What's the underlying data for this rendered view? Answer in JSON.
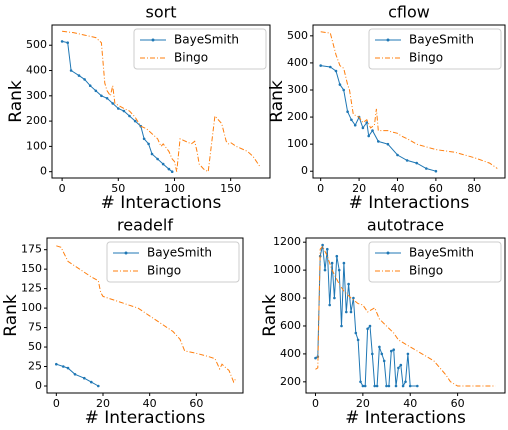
{
  "chart_data": [
    {
      "type": "line",
      "title": "sort",
      "xlabel": "# Interactions",
      "ylabel": "Rank",
      "xlim": [
        -9,
        185
      ],
      "ylim": [
        -25,
        580
      ],
      "xticks": [
        0,
        50,
        100,
        150
      ],
      "yticks": [
        0,
        100,
        200,
        300,
        400,
        500
      ],
      "legend": "upper right",
      "series": [
        {
          "name": "BayeSmith",
          "color": "#1f77b4",
          "x": [
            0,
            5,
            8,
            15,
            20,
            25,
            30,
            35,
            40,
            45,
            50,
            55,
            60,
            65,
            70,
            73,
            77,
            80,
            85,
            90,
            95,
            98
          ],
          "values": [
            515,
            510,
            400,
            380,
            365,
            340,
            320,
            300,
            290,
            270,
            250,
            240,
            220,
            200,
            180,
            130,
            110,
            70,
            50,
            30,
            10,
            0
          ]
        },
        {
          "name": "Bingo",
          "color": "#ff7f0e",
          "x": [
            0,
            10,
            20,
            30,
            35,
            38,
            40,
            43,
            45,
            47,
            55,
            60,
            65,
            70,
            75,
            80,
            85,
            88,
            90,
            95,
            98,
            100,
            102,
            105,
            115,
            118,
            120,
            122,
            126,
            130,
            136,
            142,
            146,
            148,
            150,
            155,
            165,
            170,
            176
          ],
          "values": [
            555,
            550,
            540,
            530,
            510,
            350,
            320,
            300,
            340,
            270,
            250,
            240,
            215,
            180,
            170,
            150,
            130,
            100,
            110,
            80,
            50,
            40,
            0,
            130,
            110,
            120,
            80,
            30,
            10,
            0,
            220,
            190,
            120,
            110,
            115,
            100,
            80,
            60,
            20
          ]
        }
      ]
    },
    {
      "type": "line",
      "title": "cflow",
      "xlabel": "# Interactions",
      "ylabel": "Rank",
      "xlim": [
        -4,
        96
      ],
      "ylim": [
        -25,
        540
      ],
      "xticks": [
        0,
        20,
        40,
        60,
        80
      ],
      "yticks": [
        0,
        100,
        200,
        300,
        400,
        500
      ],
      "legend": "upper right",
      "series": [
        {
          "name": "BayeSmith",
          "color": "#1f77b4",
          "x": [
            0,
            5,
            8,
            10,
            12,
            14,
            16,
            18,
            20,
            22,
            24,
            25,
            27,
            30,
            35,
            40,
            45,
            50,
            55,
            60
          ],
          "values": [
            390,
            385,
            370,
            320,
            300,
            220,
            190,
            170,
            200,
            160,
            180,
            130,
            150,
            110,
            100,
            60,
            40,
            30,
            10,
            0
          ]
        },
        {
          "name": "Bingo",
          "color": "#ff7f0e",
          "x": [
            0,
            5,
            8,
            10,
            12,
            14,
            15,
            17,
            20,
            22,
            24,
            26,
            28,
            29,
            30,
            35,
            37,
            40,
            42,
            45,
            50,
            60,
            70,
            80,
            88,
            92
          ],
          "values": [
            515,
            510,
            430,
            390,
            380,
            320,
            300,
            210,
            200,
            180,
            190,
            160,
            170,
            230,
            150,
            150,
            145,
            140,
            130,
            120,
            100,
            80,
            70,
            50,
            30,
            10
          ]
        }
      ]
    },
    {
      "type": "line",
      "title": "readelf",
      "xlabel": "# Interactions",
      "ylabel": "Rank",
      "xlim": [
        -4,
        80
      ],
      "ylim": [
        -9,
        190
      ],
      "xticks": [
        0,
        20,
        40,
        60
      ],
      "yticks": [
        0,
        25,
        50,
        75,
        100,
        125,
        150,
        175
      ],
      "legend": "upper right",
      "series": [
        {
          "name": "BayeSmith",
          "color": "#1f77b4",
          "x": [
            0,
            3,
            5,
            8,
            12,
            15,
            18
          ],
          "values": [
            28,
            25,
            23,
            15,
            10,
            5,
            0
          ]
        },
        {
          "name": "Bingo",
          "color": "#ff7f0e",
          "x": [
            0,
            2,
            5,
            10,
            15,
            18,
            19,
            20,
            22,
            25,
            30,
            35,
            40,
            45,
            50,
            53,
            55,
            60,
            65,
            68,
            70,
            71,
            72,
            74,
            76,
            77
          ],
          "values": [
            180,
            178,
            160,
            150,
            140,
            135,
            120,
            115,
            113,
            110,
            105,
            100,
            90,
            80,
            70,
            60,
            45,
            42,
            38,
            35,
            22,
            28,
            25,
            20,
            5,
            10
          ]
        }
      ]
    },
    {
      "type": "line",
      "title": "autotrace",
      "xlabel": "# Interactions",
      "ylabel": "Rank",
      "xlim": [
        -4,
        80
      ],
      "ylim": [
        120,
        1230
      ],
      "xticks": [
        0,
        20,
        40,
        60
      ],
      "yticks": [
        200,
        400,
        600,
        800,
        1000,
        1200
      ],
      "legend": "upper right",
      "series": [
        {
          "name": "BayeSmith",
          "color": "#1f77b4",
          "x": [
            0,
            1,
            2,
            3,
            4,
            5,
            6,
            7,
            8,
            9,
            10,
            11,
            12,
            13,
            14,
            15,
            16,
            17,
            18,
            19,
            20,
            21,
            22,
            23,
            24,
            25,
            26,
            27,
            28,
            29,
            30,
            31,
            32,
            33,
            34,
            35,
            36,
            37,
            38,
            39,
            40,
            43
          ],
          "values": [
            370,
            380,
            1100,
            1180,
            1000,
            1150,
            750,
            1050,
            800,
            1100,
            1000,
            600,
            1050,
            700,
            900,
            700,
            800,
            550,
            500,
            200,
            170,
            170,
            580,
            600,
            400,
            170,
            170,
            450,
            400,
            350,
            170,
            170,
            420,
            430,
            170,
            300,
            320,
            170,
            200,
            400,
            170,
            170
          ]
        },
        {
          "name": "Bingo",
          "color": "#ff7f0e",
          "x": [
            0,
            1,
            2,
            3,
            5,
            7,
            10,
            12,
            15,
            18,
            20,
            22,
            25,
            27,
            30,
            33,
            35,
            40,
            45,
            50,
            55,
            57,
            60,
            70,
            76
          ],
          "values": [
            290,
            300,
            1150,
            1170,
            1100,
            1000,
            900,
            850,
            800,
            760,
            750,
            700,
            730,
            650,
            600,
            550,
            500,
            450,
            400,
            350,
            250,
            200,
            170,
            170,
            170
          ]
        }
      ]
    }
  ]
}
